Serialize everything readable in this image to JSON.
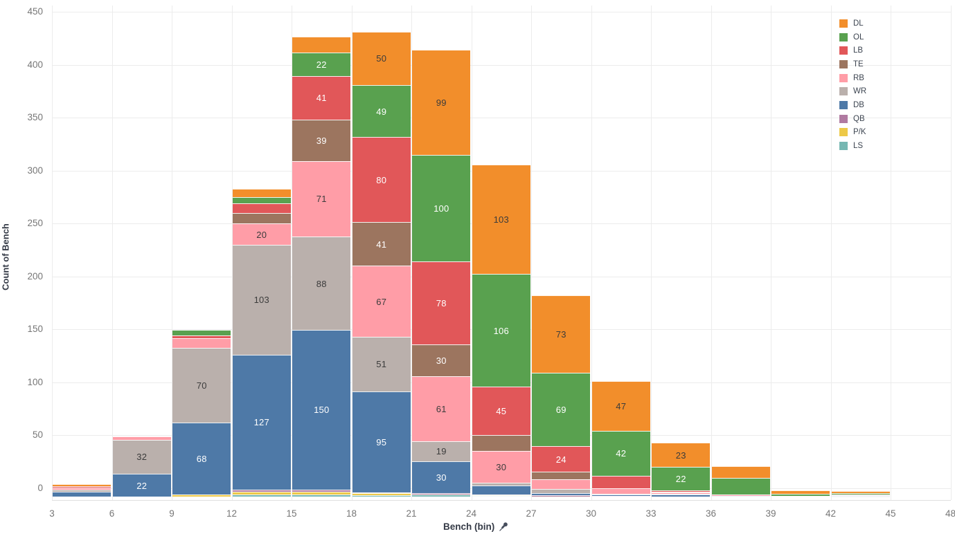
{
  "chart_data": {
    "type": "bar",
    "variant": "stacked-histogram",
    "title": "",
    "xlabel": "Bench (bin)",
    "ylabel": "Count of Bench",
    "x_axis": {
      "ticks": [
        3,
        6,
        9,
        12,
        15,
        18,
        21,
        24,
        27,
        30,
        33,
        36,
        39,
        42,
        45,
        48
      ],
      "bin_size": 3,
      "pinned": true
    },
    "y_axis": {
      "ticks": [
        0,
        50,
        100,
        150,
        200,
        250,
        300,
        350,
        400,
        450
      ],
      "range": [
        0,
        450
      ],
      "grid": true
    },
    "bins": [
      3,
      6,
      9,
      12,
      15,
      18,
      21,
      24,
      27,
      30,
      33,
      36,
      39,
      42,
      45
    ],
    "label_min_value": 19,
    "legend_position": "top-right",
    "series": [
      {
        "name": "DL",
        "color": "#F28E2B",
        "label_color": "#3b3b3b",
        "values": [
          2,
          0,
          0,
          8,
          15,
          50,
          99,
          103,
          73,
          47,
          23,
          11,
          3,
          2,
          0
        ]
      },
      {
        "name": "OL",
        "color": "#59A14F",
        "label_color": "#ffffff",
        "values": [
          0,
          0,
          5,
          6,
          22,
          49,
          100,
          106,
          69,
          42,
          22,
          16,
          2,
          1,
          0
        ]
      },
      {
        "name": "LB",
        "color": "#E15759",
        "label_color": "#ffffff",
        "values": [
          1,
          0,
          3,
          9,
          41,
          80,
          78,
          45,
          24,
          12,
          1,
          0,
          0,
          0.5,
          0
        ]
      },
      {
        "name": "TE",
        "color": "#9C755F",
        "label_color": "#ffffff",
        "values": [
          0,
          0,
          0,
          10,
          39,
          41,
          30,
          15,
          7,
          0,
          1,
          0,
          0,
          0,
          0
        ]
      },
      {
        "name": "RB",
        "color": "#FF9DA7",
        "label_color": "#3b3b3b",
        "values": [
          2,
          3,
          9,
          20,
          71,
          67,
          61,
          30,
          9,
          5,
          1,
          1,
          0,
          0,
          0
        ]
      },
      {
        "name": "WR",
        "color": "#BAB0AC",
        "label_color": "#3b3b3b",
        "values": [
          2,
          32,
          70,
          103,
          88,
          51,
          19,
          3,
          4,
          1,
          1,
          0,
          1,
          0.5,
          0
        ]
      },
      {
        "name": "DB",
        "color": "#4E79A7",
        "label_color": "#ffffff",
        "values": [
          5,
          22,
          68,
          127,
          150,
          95,
          30,
          8,
          2,
          1,
          2,
          1,
          0,
          0.5,
          0
        ]
      },
      {
        "name": "QB",
        "color": "#B07AA1",
        "label_color": "#ffffff",
        "values": [
          0,
          0,
          0,
          2,
          2,
          1,
          1,
          1,
          1,
          1,
          0,
          0,
          0,
          0.5,
          0
        ]
      },
      {
        "name": "P/K",
        "color": "#EDC948",
        "label_color": "#3b3b3b",
        "values": [
          0,
          0,
          2,
          3,
          3,
          2,
          0.5,
          0.5,
          0.5,
          0,
          0,
          0,
          0,
          0,
          0
        ]
      },
      {
        "name": "LS",
        "color": "#76B7B2",
        "label_color": "#ffffff",
        "values": [
          0,
          0,
          0,
          2,
          2,
          1.5,
          2,
          1,
          0,
          0,
          0,
          0,
          0,
          0.5,
          0
        ]
      }
    ],
    "labeled_values_visible": [
      22,
      32,
      68,
      70,
      20,
      103,
      127,
      22,
      41,
      39,
      71,
      88,
      150,
      50,
      49,
      80,
      41,
      67,
      51,
      95,
      99,
      100,
      78,
      30,
      61,
      19,
      30,
      103,
      106,
      45,
      30,
      73,
      69,
      24,
      47,
      42,
      23,
      22
    ]
  }
}
